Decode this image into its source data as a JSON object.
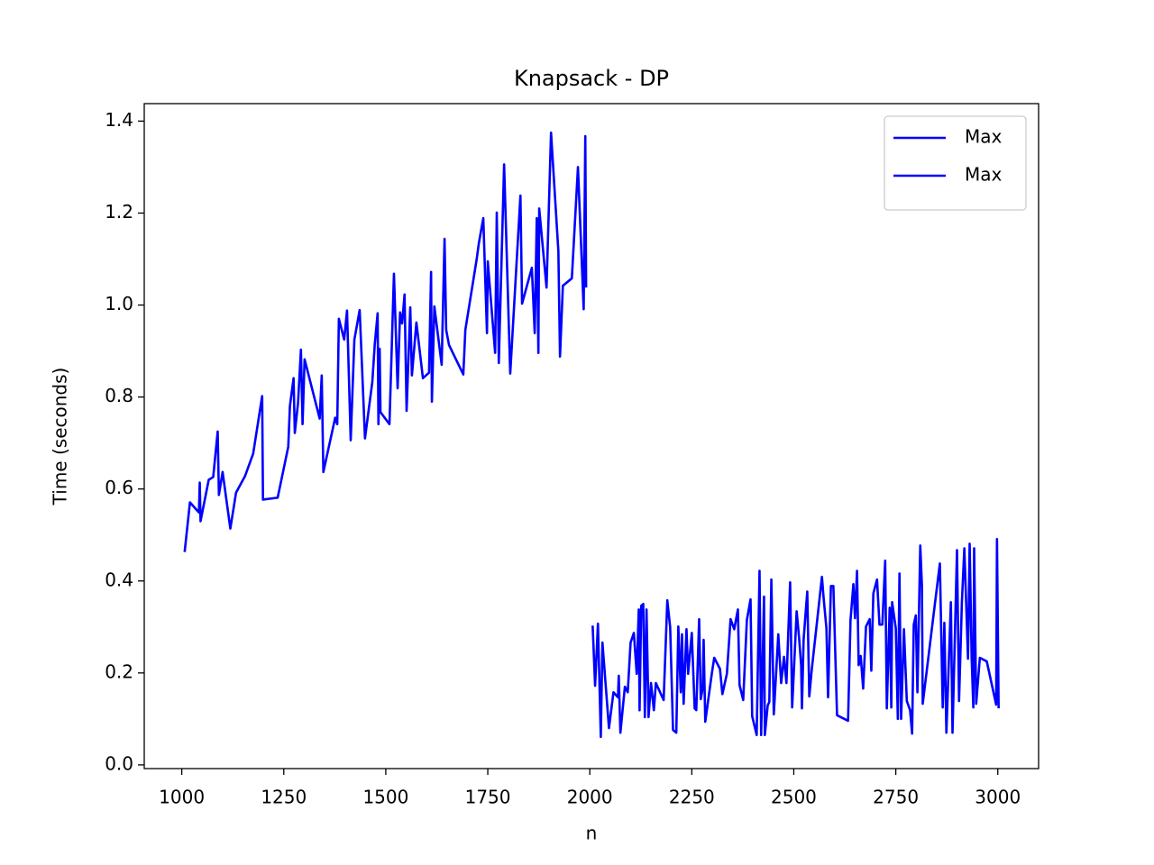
{
  "chart_data": {
    "type": "line",
    "title": "Knapsack - DP",
    "x_label": "n",
    "y_label": "Time (seconds)",
    "xlim": [
      908,
      3100
    ],
    "ylim": [
      -0.008,
      1.438
    ],
    "xticks": [
      1000,
      1250,
      1500,
      1750,
      2000,
      2250,
      2500,
      2750,
      3000
    ],
    "yticks": [
      {
        "value": 0,
        "label": "0.0"
      },
      0.2,
      0.4,
      0.6,
      0.8,
      {
        "value": 1,
        "label": "1.0"
      },
      1.2,
      1.4
    ],
    "grid": false,
    "legend": "upper right",
    "series": [
      {
        "name": "Max",
        "color": "#0000ff",
        "x": [
          1007,
          1020,
          1042,
          1044,
          1046,
          1066,
          1077,
          1088,
          1091,
          1100,
          1119,
          1133,
          1155,
          1175,
          1197,
          1199,
          1235,
          1261,
          1265,
          1274,
          1277,
          1285,
          1292,
          1296,
          1301,
          1338,
          1343,
          1347,
          1376,
          1381,
          1385,
          1398,
          1405,
          1414,
          1423,
          1436,
          1449,
          1467,
          1473,
          1480,
          1482,
          1485,
          1487,
          1509,
          1520,
          1529,
          1535,
          1540,
          1546,
          1551,
          1560,
          1564,
          1575,
          1591,
          1606,
          1611,
          1613,
          1619,
          1637,
          1644,
          1648,
          1655,
          1690,
          1695,
          1723,
          1728,
          1739,
          1748,
          1750,
          1768,
          1772,
          1777,
          1790,
          1805,
          1830,
          1834,
          1858,
          1865,
          1870,
          1874,
          1876,
          1894,
          1905,
          1923,
          1927,
          1934,
          1956,
          1971,
          1985,
          1989,
          1991
        ],
        "values": [
          0.463,
          0.571,
          0.549,
          0.614,
          0.53,
          0.62,
          0.626,
          0.725,
          0.587,
          0.637,
          0.514,
          0.592,
          0.628,
          0.677,
          0.802,
          0.577,
          0.581,
          0.692,
          0.78,
          0.841,
          0.722,
          0.788,
          0.903,
          0.741,
          0.882,
          0.753,
          0.847,
          0.637,
          0.755,
          0.741,
          0.97,
          0.925,
          0.988,
          0.706,
          0.925,
          0.989,
          0.71,
          0.833,
          0.915,
          0.982,
          0.741,
          0.905,
          0.767,
          0.741,
          1.068,
          0.819,
          0.984,
          0.96,
          1.023,
          0.77,
          0.995,
          0.847,
          0.962,
          0.841,
          0.853,
          1.072,
          0.79,
          0.997,
          0.87,
          1.144,
          0.946,
          0.913,
          0.849,
          0.946,
          1.101,
          1.134,
          1.189,
          0.939,
          1.095,
          0.896,
          1.201,
          0.874,
          1.306,
          0.851,
          1.238,
          1.003,
          1.081,
          0.939,
          1.189,
          0.896,
          1.21,
          1.038,
          1.375,
          1.117,
          0.888,
          1.042,
          1.058,
          1.3,
          0.991,
          1.367,
          1.038
        ]
      },
      {
        "name": "Max",
        "color": "#0000ff",
        "x": [
          2007,
          2013,
          2020,
          2027,
          2031,
          2047,
          2058,
          2069,
          2071,
          2075,
          2086,
          2093,
          2100,
          2108,
          2115,
          2120,
          2122,
          2126,
          2131,
          2135,
          2139,
          2144,
          2150,
          2157,
          2162,
          2181,
          2190,
          2197,
          2204,
          2212,
          2217,
          2223,
          2226,
          2230,
          2237,
          2241,
          2250,
          2257,
          2261,
          2268,
          2272,
          2277,
          2279,
          2283,
          2299,
          2305,
          2319,
          2325,
          2336,
          2345,
          2354,
          2363,
          2367,
          2376,
          2385,
          2394,
          2398,
          2409,
          2416,
          2420,
          2427,
          2429,
          2436,
          2440,
          2445,
          2451,
          2462,
          2469,
          2476,
          2482,
          2491,
          2496,
          2507,
          2513,
          2518,
          2520,
          2524,
          2533,
          2538,
          2544,
          2569,
          2573,
          2580,
          2584,
          2591,
          2597,
          2606,
          2633,
          2639,
          2646,
          2650,
          2655,
          2659,
          2664,
          2670,
          2677,
          2686,
          2690,
          2695,
          2704,
          2710,
          2717,
          2724,
          2728,
          2735,
          2739,
          2741,
          2750,
          2755,
          2759,
          2763,
          2770,
          2777,
          2785,
          2790,
          2794,
          2799,
          2803,
          2810,
          2814,
          2816,
          2841,
          2858,
          2865,
          2869,
          2874,
          2885,
          2889,
          2900,
          2905,
          2912,
          2918,
          2927,
          2931,
          2936,
          2940,
          2942,
          2947,
          2956,
          2973,
          2996,
          2998,
          3002
        ],
        "values": [
          0.303,
          0.172,
          0.307,
          0.061,
          0.266,
          0.08,
          0.158,
          0.147,
          0.194,
          0.07,
          0.17,
          0.158,
          0.266,
          0.287,
          0.198,
          0.338,
          0.119,
          0.346,
          0.35,
          0.104,
          0.338,
          0.104,
          0.178,
          0.119,
          0.178,
          0.141,
          0.358,
          0.299,
          0.076,
          0.07,
          0.301,
          0.158,
          0.284,
          0.133,
          0.295,
          0.198,
          0.287,
          0.123,
          0.119,
          0.317,
          0.143,
          0.168,
          0.272,
          0.094,
          0.198,
          0.233,
          0.209,
          0.154,
          0.198,
          0.317,
          0.295,
          0.338,
          0.174,
          0.141,
          0.315,
          0.36,
          0.106,
          0.065,
          0.422,
          0.065,
          0.366,
          0.065,
          0.129,
          0.137,
          0.403,
          0.11,
          0.284,
          0.178,
          0.235,
          0.178,
          0.397,
          0.125,
          0.334,
          0.276,
          0.217,
          0.123,
          0.272,
          0.377,
          0.149,
          0.207,
          0.409,
          0.364,
          0.297,
          0.147,
          0.389,
          0.389,
          0.108,
          0.096,
          0.315,
          0.393,
          0.319,
          0.422,
          0.217,
          0.237,
          0.166,
          0.301,
          0.317,
          0.205,
          0.373,
          0.403,
          0.305,
          0.305,
          0.444,
          0.123,
          0.342,
          0.125,
          0.354,
          0.297,
          0.1,
          0.416,
          0.1,
          0.295,
          0.139,
          0.119,
          0.068,
          0.305,
          0.325,
          0.158,
          0.477,
          0.391,
          0.133,
          0.315,
          0.438,
          0.125,
          0.309,
          0.07,
          0.354,
          0.07,
          0.467,
          0.139,
          0.354,
          0.471,
          0.231,
          0.481,
          0.231,
          0.125,
          0.471,
          0.133,
          0.233,
          0.225,
          0.131,
          0.491,
          0.123
        ]
      }
    ]
  }
}
